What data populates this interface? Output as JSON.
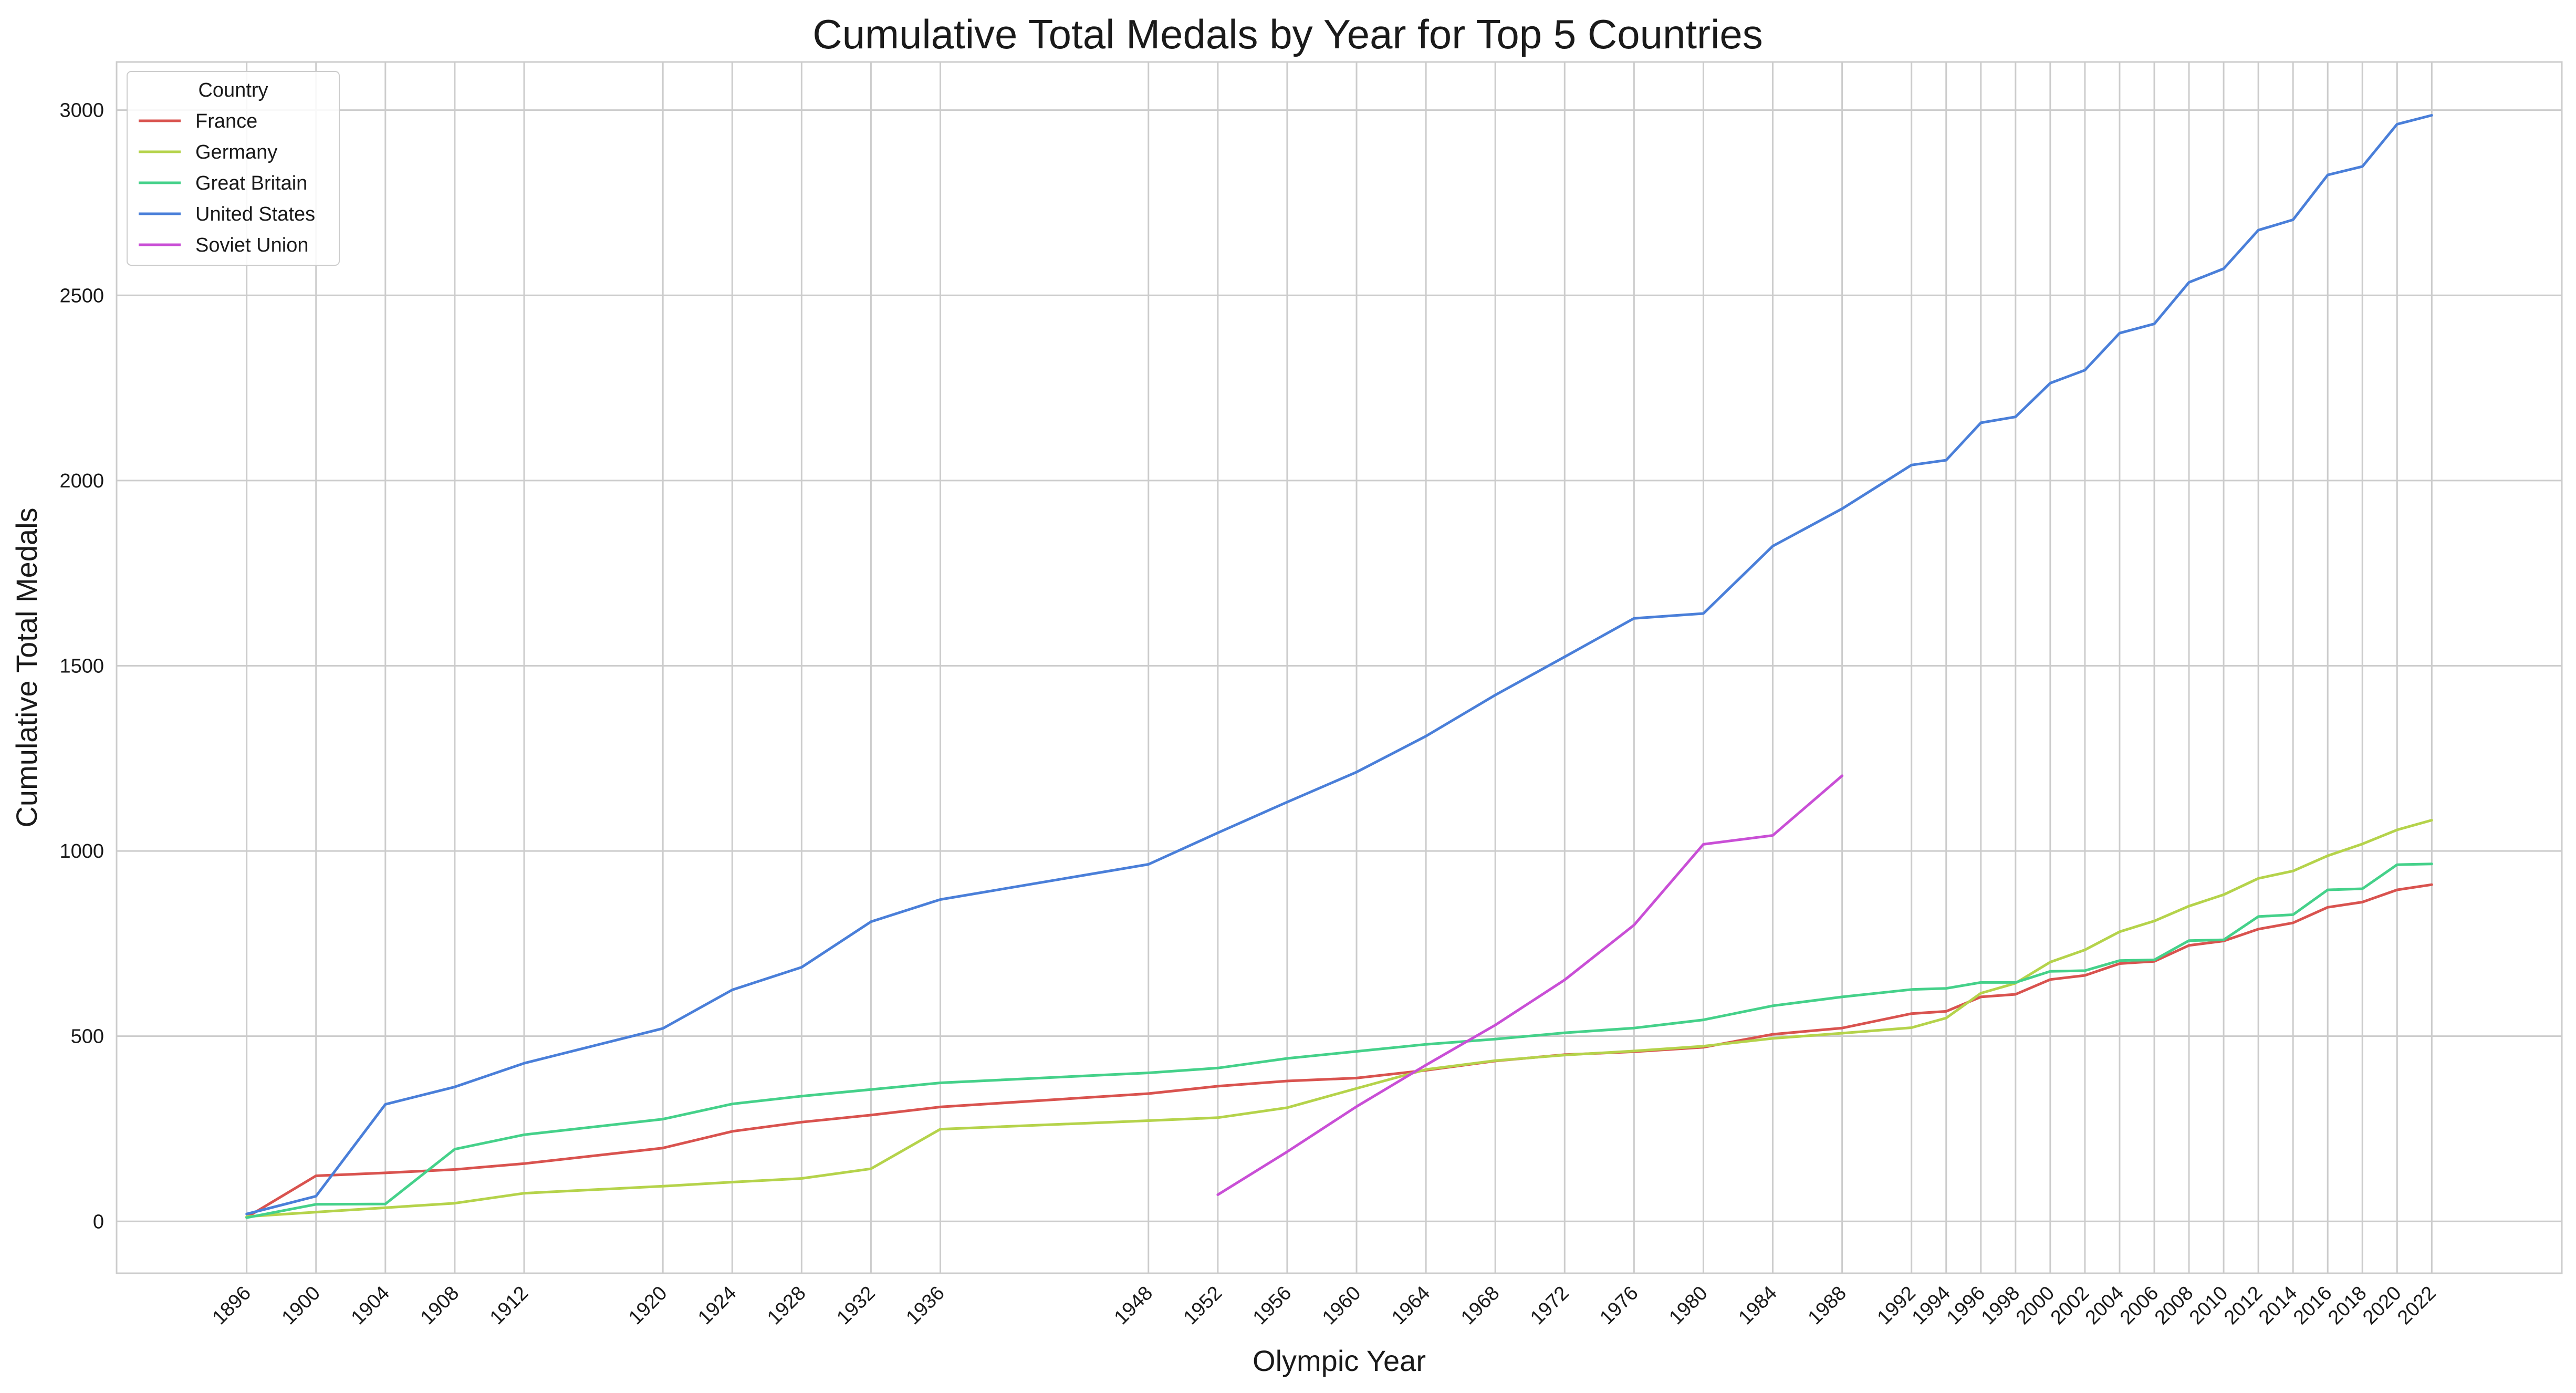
{
  "chart_data": {
    "type": "line",
    "title": "Cumulative Total Medals by Year for Top 5 Countries",
    "xlabel": "Olympic Year",
    "ylabel": "Cumulative Total Medals",
    "x": [
      1896,
      1900,
      1904,
      1908,
      1912,
      1920,
      1924,
      1928,
      1932,
      1936,
      1948,
      1952,
      1956,
      1960,
      1964,
      1968,
      1972,
      1976,
      1980,
      1984,
      1988,
      1992,
      1994,
      1996,
      1998,
      2000,
      2002,
      2004,
      2006,
      2008,
      2010,
      2012,
      2014,
      2016,
      2018,
      2020,
      2022
    ],
    "xticks": [
      1896,
      1900,
      1904,
      1908,
      1912,
      1920,
      1924,
      1928,
      1932,
      1936,
      1948,
      1952,
      1956,
      1960,
      1964,
      1968,
      1972,
      1976,
      1980,
      1984,
      1988,
      1992,
      1994,
      1996,
      1998,
      2000,
      2002,
      2004,
      2006,
      2008,
      2010,
      2012,
      2014,
      2016,
      2018,
      2020,
      2022
    ],
    "yticks": [
      0,
      500,
      1000,
      1500,
      2000,
      2500,
      3000
    ],
    "xlim": [
      1888.5,
      2029.5
    ],
    "ylim": [
      -140,
      3130
    ],
    "grid": true,
    "legend": {
      "title": "Country",
      "position": "top-left"
    },
    "series": [
      {
        "name": "France",
        "color": "#d9534f",
        "x": [
          1896,
          1900,
          1904,
          1908,
          1912,
          1920,
          1924,
          1928,
          1932,
          1936,
          1948,
          1952,
          1956,
          1960,
          1964,
          1968,
          1972,
          1976,
          1980,
          1984,
          1988,
          1992,
          1994,
          1996,
          1998,
          2000,
          2002,
          2004,
          2006,
          2008,
          2010,
          2012,
          2014,
          2016,
          2018,
          2020,
          2022
        ],
        "values": [
          11,
          123,
          131,
          140,
          156,
          198,
          243,
          268,
          287,
          309,
          345,
          365,
          379,
          387,
          408,
          433,
          450,
          458,
          470,
          505,
          522,
          561,
          567,
          606,
          613,
          653,
          664,
          696,
          702,
          745,
          757,
          789,
          806,
          848,
          862,
          895,
          909
        ]
      },
      {
        "name": "Germany",
        "color": "#b5d34b",
        "x": [
          1896,
          1900,
          1904,
          1908,
          1912,
          1920,
          1924,
          1928,
          1932,
          1936,
          1948,
          1952,
          1956,
          1960,
          1964,
          1968,
          1972,
          1976,
          1980,
          1984,
          1988,
          1992,
          1994,
          1996,
          1998,
          2000,
          2002,
          2004,
          2006,
          2008,
          2010,
          2012,
          2014,
          2016,
          2018,
          2020,
          2022
        ],
        "values": [
          13,
          25,
          37,
          49,
          76,
          95,
          106,
          116,
          142,
          249,
          272,
          280,
          307,
          359,
          410,
          434,
          449,
          460,
          473,
          494,
          508,
          523,
          549,
          616,
          643,
          700,
          733,
          782,
          811,
          851,
          882,
          926,
          946,
          987,
          1019,
          1057,
          1083
        ]
      },
      {
        "name": "Great Britain",
        "color": "#45d18a",
        "x": [
          1896,
          1900,
          1904,
          1908,
          1912,
          1920,
          1924,
          1928,
          1932,
          1936,
          1948,
          1952,
          1956,
          1960,
          1964,
          1968,
          1972,
          1976,
          1980,
          1984,
          1988,
          1992,
          1994,
          1996,
          1998,
          2000,
          2002,
          2004,
          2006,
          2008,
          2010,
          2012,
          2014,
          2016,
          2018,
          2020,
          2022
        ],
        "values": [
          10,
          46,
          47,
          195,
          234,
          276,
          317,
          338,
          356,
          374,
          401,
          414,
          440,
          459,
          478,
          492,
          509,
          522,
          544,
          582,
          606,
          626,
          629,
          645,
          645,
          675,
          677,
          704,
          706,
          758,
          760,
          823,
          828,
          895,
          898,
          963,
          965
        ]
      },
      {
        "name": "United States",
        "color": "#4a7fd9",
        "x": [
          1896,
          1900,
          1904,
          1908,
          1912,
          1920,
          1924,
          1928,
          1932,
          1936,
          1948,
          1952,
          1956,
          1960,
          1964,
          1968,
          1972,
          1976,
          1980,
          1984,
          1988,
          1992,
          1994,
          1996,
          1998,
          2000,
          2002,
          2004,
          2006,
          2008,
          2010,
          2012,
          2014,
          2016,
          2018,
          2020,
          2022
        ],
        "values": [
          20,
          68,
          316,
          363,
          427,
          521,
          625,
          686,
          809,
          869,
          964,
          1049,
          1132,
          1213,
          1310,
          1421,
          1524,
          1628,
          1641,
          1823,
          1924,
          2042,
          2055,
          2156,
          2172,
          2263,
          2298,
          2398,
          2423,
          2535,
          2572,
          2676,
          2704,
          2825,
          2848,
          2962,
          2986
        ]
      },
      {
        "name": "Soviet Union",
        "color": "#c94fd6",
        "x": [
          1952,
          1956,
          1960,
          1964,
          1968,
          1972,
          1976,
          1980,
          1984,
          1988
        ],
        "values": [
          72,
          188,
          310,
          422,
          530,
          652,
          800,
          1018,
          1042,
          1203
        ]
      }
    ]
  }
}
